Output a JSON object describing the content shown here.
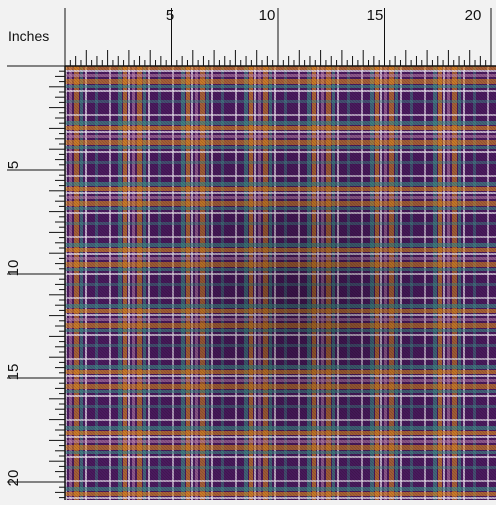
{
  "ruler": {
    "unit_label": "Inches",
    "top_numbers": [
      "5",
      "10",
      "15",
      "20"
    ],
    "left_numbers": [
      "5",
      "10",
      "15",
      "20"
    ]
  },
  "fabric": {
    "pattern": "plaid",
    "colors": {
      "base": "#4a1a5e",
      "orange": "#e08a1f",
      "teal": "#3f8f8a",
      "white": "#f3ecf6",
      "pink": "#c98fb4",
      "ruler_background": "#f2f2f2",
      "ruler_ink": "#111111"
    }
  }
}
